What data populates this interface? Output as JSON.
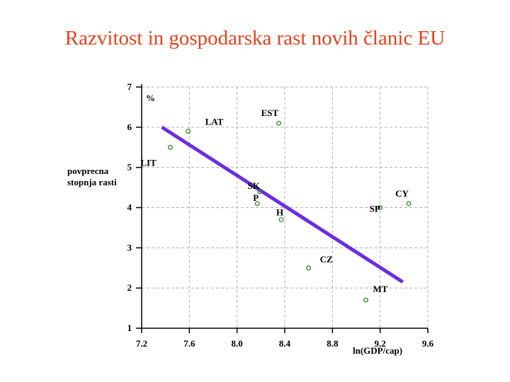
{
  "title": "Razvitost in gospodarska rast novih članic EU",
  "colors": {
    "title": "#e8401c",
    "grid": "#b0b0b0",
    "point": "#2e8b2e",
    "trend": "#6a2ee0"
  },
  "chart_data": {
    "type": "scatter",
    "title": "",
    "xlabel": "ln(GDP/cap)",
    "ylabel": "povprecna stopnja rasti",
    "y_unit": "%",
    "xlim": [
      7.2,
      9.6
    ],
    "ylim": [
      1,
      7
    ],
    "x_ticks": [
      "7.2",
      "7.6",
      "8.0",
      "8.4",
      "8.8",
      "9.2",
      "9.6"
    ],
    "y_ticks": [
      "1",
      "2",
      "3",
      "4",
      "5",
      "6",
      "7"
    ],
    "grid": true,
    "points": [
      {
        "label": "LAT",
        "x": 7.59,
        "y": 5.9
      },
      {
        "label": "LIT",
        "x": 7.44,
        "y": 5.5
      },
      {
        "label": "EST",
        "x": 8.35,
        "y": 6.1
      },
      {
        "label": "SK",
        "x": 8.19,
        "y": 4.4
      },
      {
        "label": "P",
        "x": 8.17,
        "y": 4.1
      },
      {
        "label": "H",
        "x": 8.37,
        "y": 3.7
      },
      {
        "label": "CY",
        "x": 9.44,
        "y": 4.1
      },
      {
        "label": "SP",
        "x": 9.2,
        "y": 4.0
      },
      {
        "label": "CZ",
        "x": 8.6,
        "y": 2.5
      },
      {
        "label": "MT",
        "x": 9.08,
        "y": 1.7
      }
    ],
    "trend_line": {
      "x": [
        7.37,
        9.39
      ],
      "y": [
        6.0,
        2.15
      ]
    }
  }
}
